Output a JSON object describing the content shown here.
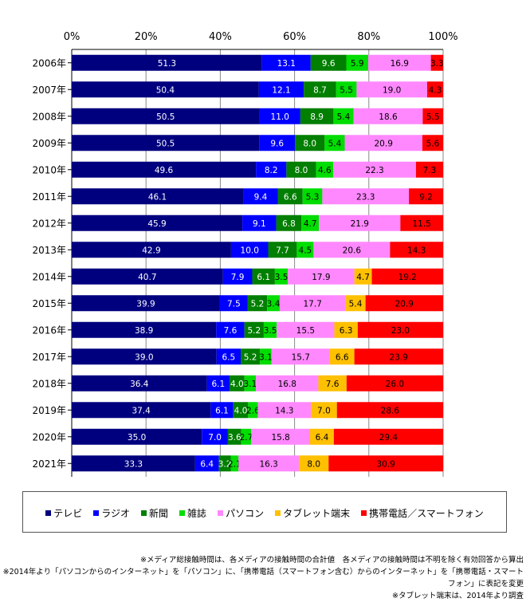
{
  "chart_data": {
    "type": "bar",
    "orientation": "horizontal",
    "stacked": "percent",
    "categories": [
      "2006年",
      "2007年",
      "2008年",
      "2009年",
      "2010年",
      "2011年",
      "2012年",
      "2013年",
      "2014年",
      "2015年",
      "2016年",
      "2017年",
      "2018年",
      "2019年",
      "2020年",
      "2021年"
    ],
    "series": [
      {
        "name": "テレビ",
        "color": "#00007f",
        "label_color": "#ffffff",
        "values": [
          51.3,
          50.4,
          50.5,
          50.5,
          49.6,
          46.1,
          45.9,
          42.9,
          40.7,
          39.9,
          38.9,
          39.0,
          36.4,
          37.4,
          35.0,
          33.3
        ]
      },
      {
        "name": "ラジオ",
        "color": "#0000ff",
        "label_color": "#ffffff",
        "values": [
          13.1,
          12.1,
          11.0,
          9.6,
          8.2,
          9.4,
          9.1,
          10.0,
          7.9,
          7.5,
          7.6,
          6.5,
          6.1,
          6.1,
          7.0,
          6.4
        ]
      },
      {
        "name": "新聞",
        "color": "#007f00",
        "label_color": "#ffffff",
        "values": [
          9.6,
          8.7,
          8.9,
          8.0,
          8.0,
          6.6,
          6.8,
          7.7,
          6.1,
          5.2,
          5.2,
          5.2,
          4.0,
          4.0,
          3.6,
          3.2
        ]
      },
      {
        "name": "雑誌",
        "color": "#00dd00",
        "label_color": "#000000",
        "values": [
          5.9,
          5.5,
          5.4,
          5.4,
          4.6,
          5.3,
          4.7,
          4.5,
          3.5,
          3.4,
          3.5,
          3.1,
          3.1,
          2.6,
          2.7,
          2.1
        ]
      },
      {
        "name": "パソコン",
        "color": "#ff88ff",
        "label_color": "#000000",
        "values": [
          16.9,
          19.0,
          18.6,
          20.9,
          22.3,
          23.3,
          21.9,
          20.6,
          17.9,
          17.7,
          15.5,
          15.7,
          16.8,
          14.3,
          15.8,
          16.3
        ]
      },
      {
        "name": "タブレット端末",
        "color": "#ffc000",
        "label_color": "#000000",
        "values": [
          null,
          null,
          null,
          null,
          null,
          null,
          null,
          null,
          4.7,
          5.4,
          6.3,
          6.6,
          7.6,
          7.0,
          6.4,
          8.0
        ]
      },
      {
        "name": "携帯電話／スマートフォン",
        "color": "#ff0000",
        "label_color": "#000000",
        "values": [
          3.3,
          4.3,
          5.5,
          5.6,
          7.3,
          9.2,
          11.5,
          14.3,
          19.2,
          20.9,
          23.0,
          23.9,
          26.0,
          28.6,
          29.4,
          30.9
        ]
      }
    ],
    "x_ticks": [
      "0%",
      "20%",
      "40%",
      "60%",
      "80%",
      "100%"
    ],
    "xlim": [
      0,
      100
    ],
    "grid": true,
    "legend_position": "bottom"
  },
  "notes": [
    "※メディア総接触時間は、各メディアの接触時間の合計値　各メディアの接触時間は不明を除く有効回答から算出",
    "※2014年より「パソコンからのインターネット」を「パソコン」に、「携帯電話（スマートフォン含む）からのインターネット」を「携帯電話・スマートフォン」に表記を変更",
    "※タブレット端末は、2014年より調査"
  ]
}
